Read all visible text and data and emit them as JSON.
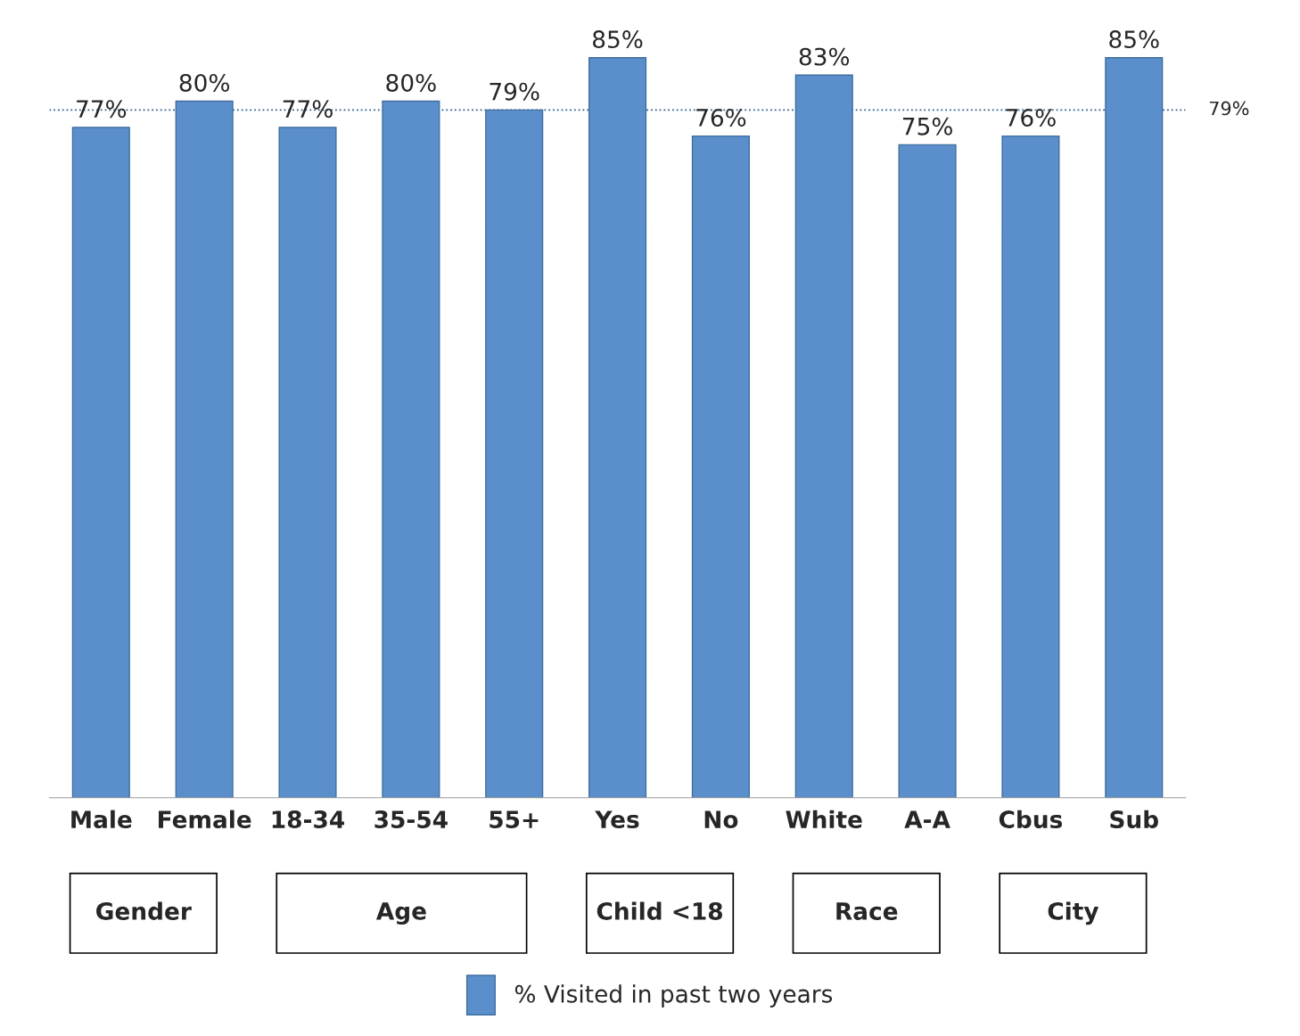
{
  "chart_data": {
    "type": "bar",
    "categories": [
      "Male",
      "Female",
      "18-34",
      "35-54",
      "55+",
      "Yes",
      "No",
      "White",
      "A-A",
      "Cbus",
      "Sub"
    ],
    "series": [
      {
        "name": "% Visited in past two years",
        "color": "#5b8fcc",
        "values": [
          77,
          80,
          77,
          80,
          79,
          85,
          76,
          83,
          75,
          76,
          85
        ],
        "value_labels": [
          "77%",
          "80%",
          "77%",
          "80%",
          "79%",
          "85%",
          "76%",
          "83%",
          "75%",
          "76%",
          "85%"
        ]
      }
    ],
    "ref_lines": [
      {
        "axis": "y",
        "value": 79,
        "label": "79%",
        "color": "#2e5f8a",
        "line_style": "dotted"
      }
    ],
    "annotations": [
      "Gender",
      "Age",
      "Child <18",
      "Race",
      "City"
    ],
    "legend": "bottom",
    "grid": false
  }
}
